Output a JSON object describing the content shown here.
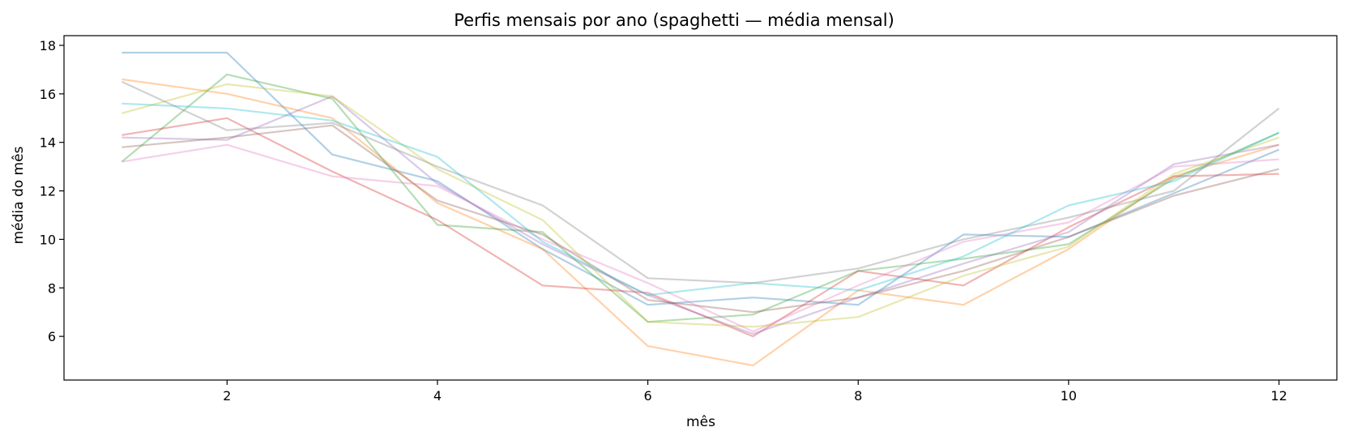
{
  "chart_data": {
    "type": "line",
    "title": "Perfis mensais por ano (spaghetti — média mensal)",
    "xlabel": "mês",
    "ylabel": "média do mês",
    "x": [
      1,
      2,
      3,
      4,
      5,
      6,
      7,
      8,
      9,
      10,
      11,
      12
    ],
    "xlim": [
      0.45,
      12.55
    ],
    "ylim": [
      4.2,
      18.4
    ],
    "xticks": [
      2,
      4,
      6,
      8,
      10,
      12
    ],
    "yticks": [
      6,
      8,
      10,
      12,
      14,
      16,
      18
    ],
    "grid": false,
    "series": [
      {
        "color": "#1f77b4",
        "values": [
          17.7,
          17.7,
          13.5,
          12.4,
          9.6,
          7.3,
          7.6,
          7.3,
          10.2,
          10.1,
          11.9,
          13.7
        ]
      },
      {
        "color": "#ff7f0e",
        "values": [
          16.6,
          16.0,
          15.0,
          11.5,
          9.6,
          5.6,
          4.8,
          7.9,
          7.3,
          9.6,
          12.6,
          13.9
        ]
      },
      {
        "color": "#2ca02c",
        "values": [
          13.2,
          16.8,
          15.8,
          10.6,
          10.3,
          6.6,
          6.9,
          8.7,
          9.2,
          9.8,
          12.5,
          14.4
        ]
      },
      {
        "color": "#d62728",
        "values": [
          14.3,
          15.0,
          12.8,
          10.8,
          8.1,
          7.8,
          6.0,
          8.7,
          8.1,
          10.5,
          12.6,
          12.7
        ]
      },
      {
        "color": "#9467bd",
        "values": [
          14.2,
          14.1,
          15.9,
          12.3,
          9.8,
          7.7,
          6.1,
          7.6,
          9.0,
          10.3,
          13.1,
          13.9
        ]
      },
      {
        "color": "#8c564b",
        "values": [
          13.8,
          14.2,
          14.7,
          11.6,
          10.2,
          7.5,
          7.0,
          7.6,
          8.7,
          10.1,
          11.8,
          12.9
        ]
      },
      {
        "color": "#e377c2",
        "values": [
          13.2,
          13.9,
          12.6,
          12.2,
          10.0,
          8.2,
          6.2,
          8.1,
          9.9,
          10.7,
          13.0,
          13.3
        ]
      },
      {
        "color": "#7f7f7f",
        "values": [
          16.5,
          14.5,
          14.8,
          13.0,
          11.4,
          8.4,
          8.2,
          8.8,
          10.0,
          10.9,
          12.0,
          15.4
        ]
      },
      {
        "color": "#bcbd22",
        "values": [
          15.2,
          16.4,
          15.9,
          12.9,
          10.8,
          6.6,
          6.4,
          6.8,
          8.5,
          9.7,
          12.7,
          14.2
        ]
      },
      {
        "color": "#17becf",
        "values": [
          15.6,
          15.4,
          14.9,
          13.4,
          9.9,
          7.7,
          8.2,
          7.9,
          9.3,
          11.4,
          12.4,
          14.4
        ]
      }
    ]
  }
}
